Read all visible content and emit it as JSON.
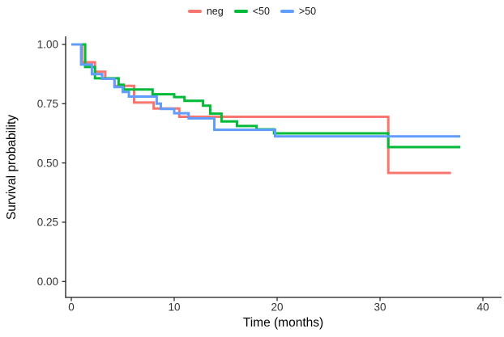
{
  "chart_data": {
    "type": "line",
    "variant": "kaplan-meier-step",
    "title": "",
    "xlabel": "Time (months)",
    "ylabel": "Survival probability",
    "x_ticks": [
      0,
      10,
      20,
      30,
      40
    ],
    "y_ticks": [
      "0.00",
      "0.25",
      "0.50",
      "0.75",
      "1.00"
    ],
    "xlim": [
      0,
      40
    ],
    "ylim": [
      0,
      1
    ],
    "grid": false,
    "legend_position": "top",
    "axis_color": "#1a1a1a",
    "tick_label_color": "#333333",
    "line_width": 3,
    "series": [
      {
        "name": "neg",
        "color": "#F8766D",
        "end_time": 36.9,
        "steps": [
          [
            0,
            1.0
          ],
          [
            1.05,
            0.925
          ],
          [
            2.3,
            0.885
          ],
          [
            3.3,
            0.855
          ],
          [
            4.2,
            0.825
          ],
          [
            6.1,
            0.755
          ],
          [
            8.0,
            0.73
          ],
          [
            10.5,
            0.695
          ],
          [
            30.8,
            0.458
          ]
        ]
      },
      {
        "name": "<50",
        "color": "#00BA38",
        "end_time": 37.8,
        "steps": [
          [
            0,
            1.0
          ],
          [
            1.35,
            0.905
          ],
          [
            2.3,
            0.857
          ],
          [
            4.6,
            0.83
          ],
          [
            5.1,
            0.81
          ],
          [
            7.9,
            0.79
          ],
          [
            10.0,
            0.778
          ],
          [
            11.0,
            0.762
          ],
          [
            12.8,
            0.742
          ],
          [
            13.5,
            0.708
          ],
          [
            14.6,
            0.675
          ],
          [
            16.1,
            0.656
          ],
          [
            18.0,
            0.642
          ],
          [
            19.7,
            0.625
          ],
          [
            30.8,
            0.567
          ]
        ]
      },
      {
        "name": ">50",
        "color": "#619CFF",
        "end_time": 37.8,
        "steps": [
          [
            0,
            1.0
          ],
          [
            0.95,
            0.915
          ],
          [
            2.0,
            0.875
          ],
          [
            3.0,
            0.855
          ],
          [
            4.2,
            0.82
          ],
          [
            5.0,
            0.8
          ],
          [
            5.6,
            0.78
          ],
          [
            8.3,
            0.75
          ],
          [
            8.7,
            0.728
          ],
          [
            10.0,
            0.71
          ],
          [
            11.4,
            0.688
          ],
          [
            13.9,
            0.64
          ],
          [
            19.8,
            0.612
          ]
        ]
      }
    ]
  }
}
